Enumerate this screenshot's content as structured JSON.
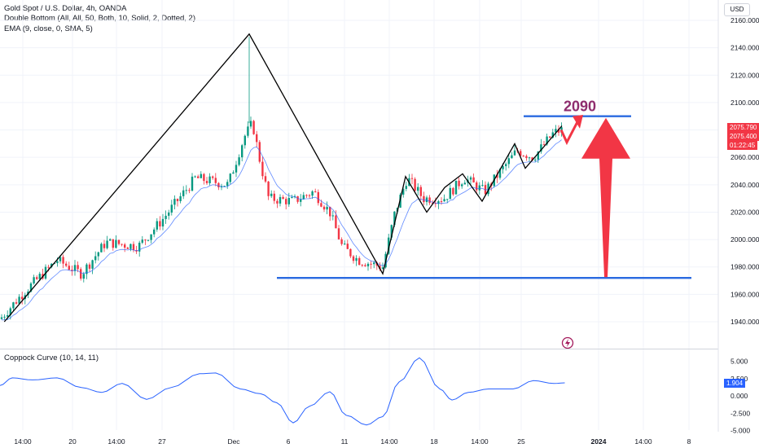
{
  "header": {
    "symbol_line": "Gold Spot / U.S. Dollar, 4h, OANDA",
    "pattern_line": "Double Bottom (All, All, 50, Both, 10, Solid, 2, Dotted, 2)",
    "ema_line": "EMA (9, close, 0, SMA, 5)",
    "currency_button": "USD"
  },
  "price_axis": {
    "ticks": [
      "2160.000",
      "2140.000",
      "2120.000",
      "2100.000",
      "2080.000",
      "2060.000",
      "2040.000",
      "2020.000",
      "2000.000",
      "1980.000",
      "1960.000",
      "1940.000"
    ],
    "current_price": "2075.790",
    "price2": "2075.400",
    "countdown": "01:22:45"
  },
  "time_axis": {
    "ticks": [
      "14:00",
      "20",
      "14:00",
      "27",
      "Dec",
      "6",
      "11",
      "14:00",
      "18",
      "14:00",
      "25",
      "2024",
      "14:00",
      "8"
    ]
  },
  "annotation": {
    "target_label": "2090"
  },
  "coppock": {
    "title": "Coppock Curve (10, 14, 11)",
    "ticks": [
      "5.000",
      "2.500",
      "0.000",
      "-2.500",
      "-5.000"
    ],
    "current_value": "1.904"
  },
  "colors": {
    "up": "#089981",
    "down": "#f23645",
    "ema": "#2962ff",
    "line": "#2a6ae0",
    "arrow": "#f23645",
    "label": "#8e2d6e"
  },
  "chart_data": [
    {
      "type": "candlestick",
      "title": "Gold Spot / U.S. Dollar, 4h, OANDA",
      "ylim": [
        1930,
        2165
      ],
      "x": [
        "14:00",
        "20",
        "14:00",
        "27",
        "Dec",
        "6",
        "11",
        "14:00",
        "18",
        "14:00",
        "25",
        "2024",
        "14:00",
        "8"
      ],
      "path_points": [
        [
          1940,
          1
        ],
        [
          2150,
          0.305
        ],
        [
          1975,
          0.47
        ],
        [
          2040,
          0.535
        ]
      ],
      "support_level": 1972,
      "resistance_level": 2090,
      "target": 2090
    },
    {
      "type": "line",
      "title": "Coppock Curve (10, 14, 11)",
      "ylim": [
        -5,
        5
      ],
      "current": 1.904
    }
  ]
}
